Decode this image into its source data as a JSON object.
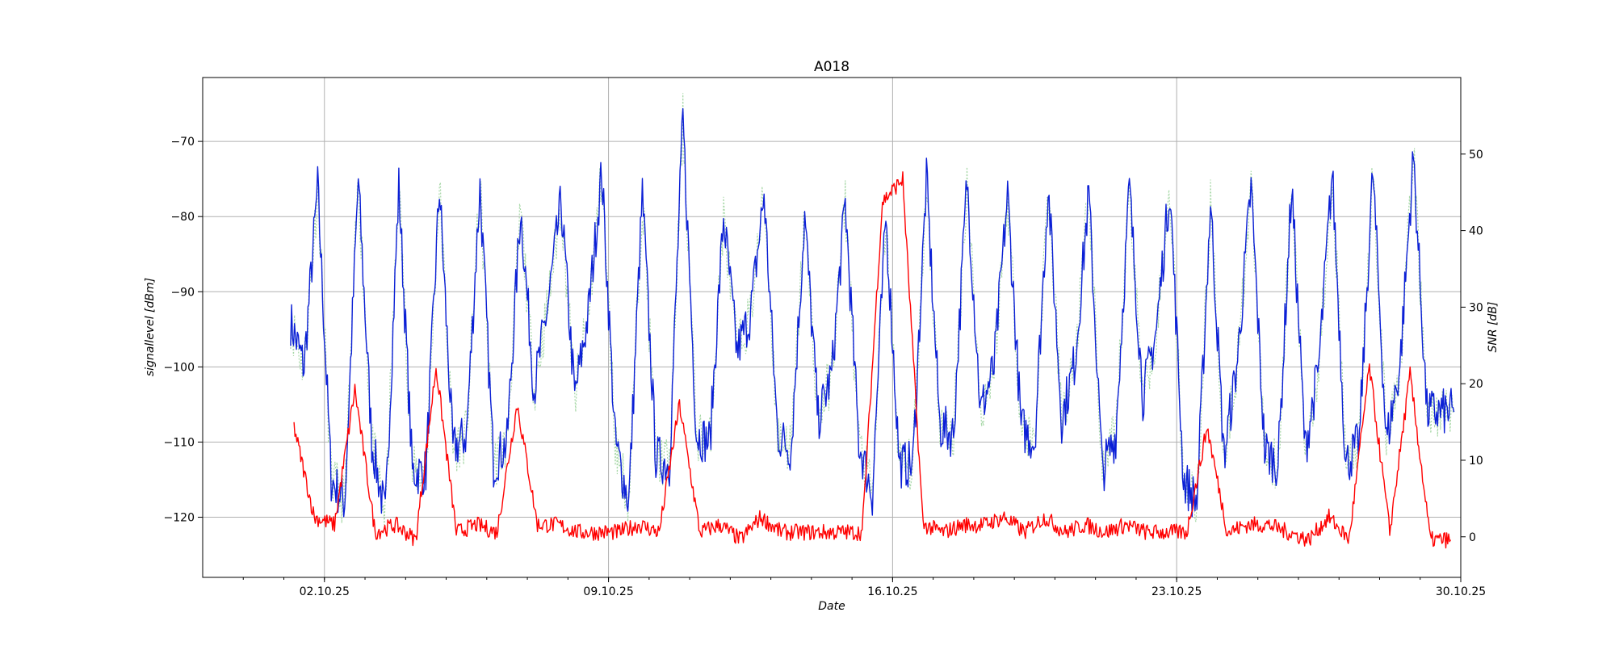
{
  "chart_data": {
    "type": "line",
    "title": "A018",
    "xlabel": "Date",
    "ylabel_left": "signallevel [dBm]",
    "ylabel_right": "SNR [dB]",
    "x_ticks": [
      "02.10.25",
      "09.10.25",
      "16.10.25",
      "23.10.25",
      "30.10.25"
    ],
    "x_range": [
      "2025-09-29",
      "2025-10-30"
    ],
    "y_left_ticks": [
      -70,
      -80,
      -90,
      -100,
      -110,
      -120
    ],
    "y_left_range": [
      -128,
      -61.5
    ],
    "y_right_ticks": [
      50,
      40,
      30,
      20,
      10,
      0
    ],
    "y_right_range": [
      -5.3,
      60
    ],
    "grid": true,
    "colors": {
      "blue": "#0b1fd6",
      "red": "#ff0000",
      "green": "#a8d8a8"
    },
    "series": [
      {
        "axis": "left",
        "color": "#0b1fd6",
        "x": [
          "2025-10-01",
          "2025-10-01",
          "2025-10-01",
          "2025-10-02",
          "2025-10-02",
          "2025-10-02",
          "2025-10-03",
          "2025-10-03",
          "2025-10-03",
          "2025-10-04",
          "2025-10-04",
          "2025-10-04",
          "2025-10-05",
          "2025-10-05",
          "2025-10-05",
          "2025-10-06",
          "2025-10-06",
          "2025-10-06",
          "2025-10-07",
          "2025-10-07",
          "2025-10-07",
          "2025-10-08",
          "2025-10-08",
          "2025-10-08",
          "2025-10-09",
          "2025-10-09",
          "2025-10-09",
          "2025-10-10",
          "2025-10-10",
          "2025-10-10",
          "2025-10-11",
          "2025-10-11",
          "2025-10-11",
          "2025-10-12",
          "2025-10-12",
          "2025-10-12",
          "2025-10-13",
          "2025-10-13",
          "2025-10-13",
          "2025-10-14",
          "2025-10-14",
          "2025-10-14",
          "2025-10-15",
          "2025-10-15",
          "2025-10-15",
          "2025-10-16",
          "2025-10-16",
          "2025-10-16",
          "2025-10-17",
          "2025-10-17",
          "2025-10-17",
          "2025-10-18",
          "2025-10-18",
          "2025-10-18",
          "2025-10-19",
          "2025-10-19",
          "2025-10-19",
          "2025-10-20",
          "2025-10-20",
          "2025-10-20",
          "2025-10-21",
          "2025-10-21",
          "2025-10-21",
          "2025-10-22",
          "2025-10-22",
          "2025-10-22",
          "2025-10-23",
          "2025-10-23",
          "2025-10-23",
          "2025-10-24",
          "2025-10-24",
          "2025-10-24",
          "2025-10-25",
          "2025-10-25",
          "2025-10-25",
          "2025-10-26",
          "2025-10-26",
          "2025-10-26",
          "2025-10-27",
          "2025-10-27",
          "2025-10-27",
          "2025-10-28",
          "2025-10-28",
          "2025-10-28",
          "2025-10-29",
          "2025-10-29",
          "2025-10-29"
        ],
        "values": [
          -94,
          -100,
          -76,
          -115,
          -118,
          -75,
          -110,
          -120,
          -76,
          -114,
          -114,
          -76,
          -111,
          -109,
          -76,
          -113,
          -110,
          -79,
          -103,
          -92,
          -78,
          -104,
          -93,
          -74,
          -110,
          -118,
          -77,
          -112,
          -113,
          -67,
          -109,
          -110,
          -80,
          -98,
          -93,
          -77,
          -109,
          -111,
          -80,
          -107,
          -101,
          -78,
          -110,
          -117,
          -80,
          -113,
          -113,
          -75,
          -108,
          -109,
          -75,
          -106,
          -100,
          -77,
          -108,
          -110,
          -76,
          -107,
          -99,
          -77,
          -114,
          -109,
          -76,
          -104,
          -95,
          -76,
          -115,
          -118,
          -78,
          -112,
          -99,
          -76,
          -111,
          -113,
          -76,
          -111,
          -100,
          -74,
          -113,
          -110,
          -74,
          -110,
          -100,
          -72,
          -106,
          -106,
          -106
        ]
      },
      {
        "axis": "left",
        "color": "#ff0000",
        "x": [
          "2025-10-01",
          "2025-10-01",
          "2025-10-02",
          "2025-10-02",
          "2025-10-03",
          "2025-10-03",
          "2025-10-04",
          "2025-10-04",
          "2025-10-05",
          "2025-10-05",
          "2025-10-06",
          "2025-10-06",
          "2025-10-07",
          "2025-10-07",
          "2025-10-08",
          "2025-10-08",
          "2025-10-09",
          "2025-10-09",
          "2025-10-10",
          "2025-10-10",
          "2025-10-11",
          "2025-10-11",
          "2025-10-12",
          "2025-10-12",
          "2025-10-13",
          "2025-10-13",
          "2025-10-14",
          "2025-10-14",
          "2025-10-15",
          "2025-10-15",
          "2025-10-16",
          "2025-10-16",
          "2025-10-17",
          "2025-10-17",
          "2025-10-18",
          "2025-10-18",
          "2025-10-19",
          "2025-10-19",
          "2025-10-20",
          "2025-10-20",
          "2025-10-21",
          "2025-10-21",
          "2025-10-22",
          "2025-10-22",
          "2025-10-23",
          "2025-10-23",
          "2025-10-24",
          "2025-10-24",
          "2025-10-25",
          "2025-10-25",
          "2025-10-26",
          "2025-10-26",
          "2025-10-27",
          "2025-10-27",
          "2025-10-28",
          "2025-10-28",
          "2025-10-29",
          "2025-10-29"
        ],
        "values": [
          -108,
          -120,
          -121,
          -103,
          -122,
          -121,
          -123,
          -100,
          -122,
          -121,
          -122,
          -105,
          -121,
          -121,
          -122,
          -122,
          -122,
          -121,
          -122,
          -105,
          -122,
          -121,
          -123,
          -120,
          -122,
          -122,
          -122,
          -122,
          -122,
          -78,
          -75,
          -121,
          -122,
          -121,
          -121,
          -120,
          -122,
          -120,
          -122,
          -121,
          -122,
          -121,
          -122,
          -122,
          -122,
          -108,
          -122,
          -121,
          -121,
          -122,
          -123,
          -120,
          -123,
          -100,
          -122,
          -101,
          -123,
          -123
        ]
      }
    ]
  }
}
